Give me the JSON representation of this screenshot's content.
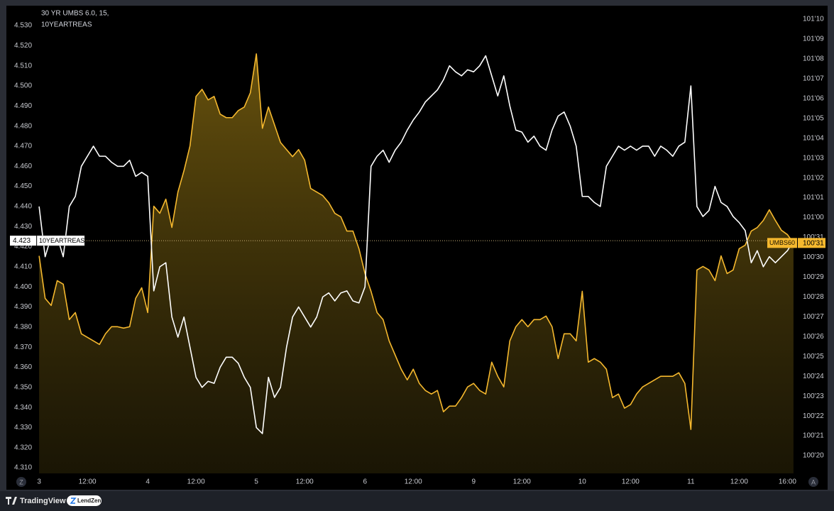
{
  "chart_data": {
    "type": "line",
    "title": "30 YR UMBS 6.0, 15,",
    "x": [
      0,
      0.5,
      1,
      1.5,
      2,
      2.5,
      3,
      3.5,
      4,
      4.5,
      5,
      5.5,
      6,
      6.5,
      7,
      7.5,
      8,
      8.5,
      9,
      9.5,
      10,
      10.5,
      11,
      11.5,
      12,
      12.5,
      13,
      13.5,
      14,
      14.5,
      15,
      15.5,
      16,
      16.5,
      17,
      17.5,
      18,
      18.5,
      19,
      19.5,
      20,
      20.5,
      21,
      21.5,
      22,
      22.5,
      23,
      23.5,
      24,
      24.5,
      25,
      25.5,
      26,
      26.5,
      27,
      27.5,
      28,
      28.5,
      29,
      29.5,
      30,
      30.5,
      31,
      31.5,
      32,
      32.5,
      33,
      33.5,
      34,
      34.5,
      35,
      35.5,
      36,
      36.5,
      37,
      37.5,
      38,
      38.5,
      39,
      39.5,
      40,
      40.5,
      41,
      41.5,
      42,
      42.5,
      43,
      43.5,
      44,
      44.5,
      45,
      45.5,
      46,
      46.5,
      47,
      47.5,
      48,
      48.5,
      49,
      49.5,
      50,
      50.5,
      51,
      51.5,
      52,
      52.5,
      53,
      53.5,
      54,
      54.5,
      55,
      55.5,
      56,
      56.5,
      57,
      57.5,
      58,
      58.5,
      59,
      59.5,
      60,
      60.5,
      61,
      61.5,
      62,
      62.5
    ],
    "xlim": [
      -0.3,
      62.8
    ],
    "xticks": [
      {
        "value": 0,
        "label": "3"
      },
      {
        "value": 4,
        "label": "12:00"
      },
      {
        "value": 9,
        "label": "4"
      },
      {
        "value": 13,
        "label": "12:00"
      },
      {
        "value": 18,
        "label": "5"
      },
      {
        "value": 22,
        "label": "12:00"
      },
      {
        "value": 27,
        "label": "6"
      },
      {
        "value": 31,
        "label": "12:00"
      },
      {
        "value": 36,
        "label": "9"
      },
      {
        "value": 40,
        "label": "12:00"
      },
      {
        "value": 45,
        "label": "10"
      },
      {
        "value": 49,
        "label": "12:00"
      },
      {
        "value": 54,
        "label": "11"
      },
      {
        "value": 58,
        "label": "12:00"
      },
      {
        "value": 62,
        "label": "16:00"
      }
    ],
    "ylim": [
      4.3072,
      4.5392
    ],
    "yticks": [
      {
        "value": 4.31,
        "label": "4.310"
      },
      {
        "value": 4.32,
        "label": "4.320"
      },
      {
        "value": 4.33,
        "label": "4.330"
      },
      {
        "value": 4.34,
        "label": "4.340"
      },
      {
        "value": 4.35,
        "label": "4.350"
      },
      {
        "value": 4.36,
        "label": "4.360"
      },
      {
        "value": 4.37,
        "label": "4.370"
      },
      {
        "value": 4.38,
        "label": "4.380"
      },
      {
        "value": 4.39,
        "label": "4.390"
      },
      {
        "value": 4.4,
        "label": "4.400"
      },
      {
        "value": 4.41,
        "label": "4.410"
      },
      {
        "value": 4.42,
        "label": "4.420"
      },
      {
        "value": 4.43,
        "label": "4.430"
      },
      {
        "value": 4.44,
        "label": "4.440"
      },
      {
        "value": 4.45,
        "label": "4.450"
      },
      {
        "value": 4.46,
        "label": "4.460"
      },
      {
        "value": 4.47,
        "label": "4.470"
      },
      {
        "value": 4.48,
        "label": "4.480"
      },
      {
        "value": 4.49,
        "label": "4.490"
      },
      {
        "value": 4.5,
        "label": "4.500"
      },
      {
        "value": 4.51,
        "label": "4.510"
      },
      {
        "value": 4.52,
        "label": "4.520"
      },
      {
        "value": 4.53,
        "label": "4.530"
      }
    ],
    "y2lim": [
      100.5971,
      101.3315
    ],
    "y2ticks": [
      {
        "value": 100.625,
        "label": "100'20"
      },
      {
        "value": 100.65625,
        "label": "100'21"
      },
      {
        "value": 100.6875,
        "label": "100'22"
      },
      {
        "value": 100.71875,
        "label": "100'23"
      },
      {
        "value": 100.75,
        "label": "100'24"
      },
      {
        "value": 100.78125,
        "label": "100'25"
      },
      {
        "value": 100.8125,
        "label": "100'26"
      },
      {
        "value": 100.84375,
        "label": "100'27"
      },
      {
        "value": 100.875,
        "label": "100'28"
      },
      {
        "value": 100.90625,
        "label": "100'29"
      },
      {
        "value": 100.9375,
        "label": "100'30"
      },
      {
        "value": 100.96875,
        "label": "100'31"
      },
      {
        "value": 101,
        "label": "101'00"
      },
      {
        "value": 101.03125,
        "label": "101'01"
      },
      {
        "value": 101.0625,
        "label": "101'02"
      },
      {
        "value": 101.09375,
        "label": "101'03"
      },
      {
        "value": 101.125,
        "label": "101'04"
      },
      {
        "value": 101.15625,
        "label": "101'05"
      },
      {
        "value": 101.1875,
        "label": "101'06"
      },
      {
        "value": 101.21875,
        "label": "101'07"
      },
      {
        "value": 101.25,
        "label": "101'08"
      },
      {
        "value": 101.28125,
        "label": "101'09"
      },
      {
        "value": 101.3125,
        "label": "101'10"
      }
    ],
    "series": [
      {
        "name": "10YEARTREAS",
        "color": "#ffffff",
        "axis": "y",
        "values": [
          4.44,
          4.415,
          4.425,
          4.425,
          4.415,
          4.44,
          4.445,
          4.46,
          4.465,
          4.47,
          4.465,
          4.465,
          4.462,
          4.46,
          4.46,
          4.463,
          4.455,
          4.457,
          4.455,
          4.398,
          4.41,
          4.412,
          4.385,
          4.375,
          4.385,
          4.37,
          4.355,
          4.35,
          4.353,
          4.352,
          4.36,
          4.365,
          4.365,
          4.362,
          4.355,
          4.35,
          4.33,
          4.327,
          4.355,
          4.345,
          4.35,
          4.37,
          4.385,
          4.39,
          4.385,
          4.38,
          4.385,
          4.395,
          4.397,
          4.393,
          4.397,
          4.398,
          4.393,
          4.392,
          4.4,
          4.46,
          4.465,
          4.468,
          4.462,
          4.468,
          4.472,
          4.478,
          4.483,
          4.487,
          4.492,
          4.495,
          4.498,
          4.503,
          4.51,
          4.507,
          4.505,
          4.508,
          4.507,
          4.51,
          4.515,
          4.505,
          4.495,
          4.505,
          4.49,
          4.478,
          4.477,
          4.472,
          4.475,
          4.47,
          4.468,
          4.478,
          4.485,
          4.487,
          4.48,
          4.47,
          4.445,
          4.445,
          4.442,
          4.44,
          4.46,
          4.465,
          4.47,
          4.468,
          4.47,
          4.468,
          4.47,
          4.47,
          4.465,
          4.47,
          4.468,
          4.465,
          4.47,
          4.472,
          4.5,
          4.44,
          4.435,
          4.438,
          4.45,
          4.442,
          4.44,
          4.435,
          4.432,
          4.428,
          4.412,
          4.418,
          4.41,
          4.415,
          4.412,
          4.415,
          4.418,
          4.423
        ]
      },
      {
        "name": "UMBS60",
        "color": "#f5b82e",
        "axis": "y2",
        "area": true,
        "values": [
          100.9397,
          100.8728,
          100.8616,
          100.9007,
          100.8951,
          100.8393,
          100.8504,
          100.817,
          100.8114,
          100.8058,
          100.8002,
          100.817,
          100.8281,
          100.8281,
          100.8259,
          100.8281,
          100.8728,
          100.8895,
          100.8504,
          101.0179,
          101.0067,
          101.029,
          100.9844,
          101.0402,
          101.0737,
          101.1127,
          101.1908,
          101.202,
          101.1853,
          101.1908,
          101.1629,
          101.1574,
          101.1574,
          101.1685,
          101.1741,
          101.1964,
          101.2578,
          101.1406,
          101.1741,
          101.1462,
          101.1183,
          101.1071,
          101.096,
          101.1071,
          101.0904,
          101.0458,
          101.0402,
          101.0346,
          101.0234,
          101.0067,
          101.0011,
          100.9788,
          100.9788,
          100.9509,
          100.9118,
          100.8839,
          100.8504,
          100.8393,
          100.8058,
          100.7835,
          100.7612,
          100.7444,
          100.7612,
          100.7388,
          100.7277,
          100.7221,
          100.7277,
          100.6942,
          100.7031,
          100.7031,
          100.7165,
          100.7333,
          100.7388,
          100.7277,
          100.7221,
          100.7723,
          100.75,
          100.7333,
          100.8058,
          100.8281,
          100.8393,
          100.8281,
          100.8393,
          100.8393,
          100.8449,
          100.8281,
          100.7779,
          100.817,
          100.817,
          100.8058,
          100.8839,
          100.7723,
          100.7779,
          100.7723,
          100.7612,
          100.7165,
          100.7221,
          100.6998,
          100.7054,
          100.7221,
          100.7333,
          100.7388,
          100.7444,
          100.75,
          100.75,
          100.75,
          100.7556,
          100.7388,
          100.6663,
          100.9174,
          100.923,
          100.9174,
          100.9007,
          100.9397,
          100.9118,
          100.9174,
          100.9509,
          100.9565,
          100.9788,
          100.9844,
          100.9955,
          101.0123,
          100.9955,
          100.98,
          100.9732,
          100.96
        ],
        "value_labels": [
          null,
          null,
          null,
          null,
          null,
          null,
          null,
          null,
          null,
          null,
          null,
          null,
          null,
          null,
          null,
          null,
          null,
          null,
          null,
          null,
          null,
          null,
          null,
          null,
          null,
          null,
          null,
          null,
          null,
          null,
          null,
          null,
          null,
          null,
          null,
          null,
          null,
          null,
          null,
          null,
          null,
          null,
          null,
          null,
          null,
          null,
          null,
          null,
          null,
          null,
          null,
          null,
          null,
          null,
          null,
          null,
          null,
          null,
          null,
          null,
          null,
          null,
          null,
          null,
          null,
          null,
          null,
          null,
          null,
          null,
          null,
          null,
          null,
          null,
          null,
          null,
          null,
          null,
          null,
          null,
          null,
          null,
          null,
          null,
          null,
          null,
          null,
          null,
          null,
          null,
          null,
          null,
          null,
          null,
          null,
          null,
          null,
          null,
          null,
          null,
          null,
          null,
          null,
          null,
          null,
          null,
          null,
          null,
          null,
          null,
          null,
          null,
          null,
          null,
          null,
          null,
          null,
          null,
          null,
          null,
          null,
          null,
          null,
          null,
          null,
          "100'31"
        ]
      }
    ]
  },
  "ui": {
    "left_button": "Z",
    "right_button": "A",
    "brand": "TradingView",
    "partner": "LendZen"
  }
}
